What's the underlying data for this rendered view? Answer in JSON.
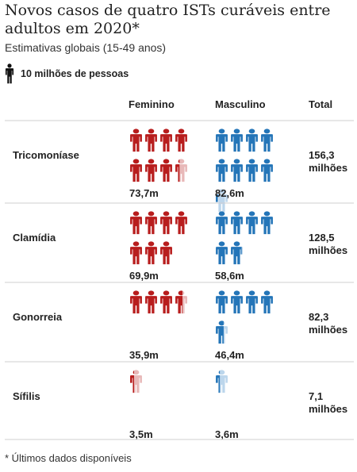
{
  "title": "Novos casos de quatro ISTs curáveis entre adultos em 2020*",
  "subtitle": "Estimativas globais (15-49 anos)",
  "legend": {
    "label": "10 milhões de pessoas",
    "icon": "person-icon"
  },
  "headers": {
    "female": "Feminino",
    "male": "Masculino",
    "total": "Total"
  },
  "footnote": "* Últimos dados disponíveis",
  "colors": {
    "female": "#b81d1d",
    "male": "#2475b8",
    "female_partial": "#e8b8b8",
    "male_partial": "#bcd6ec",
    "legend_icon": "#111111",
    "divider": "#cfcfcf"
  },
  "chart_data": {
    "type": "pictograph",
    "unit_label": "10 milhões de pessoas",
    "unit_value_millions": 10,
    "categories": [
      "Tricomoníase",
      "Clamídia",
      "Gonorreia",
      "Sífilis"
    ],
    "series": [
      {
        "name": "Feminino",
        "values": [
          73.7,
          69.9,
          35.9,
          3.5
        ],
        "labels": [
          "73,7m",
          "69,9m",
          "35,9m",
          "3,5m"
        ]
      },
      {
        "name": "Masculino",
        "values": [
          82.6,
          58.6,
          46.4,
          3.6
        ],
        "labels": [
          "82,6m",
          "58,6m",
          "46,4m",
          "3,6m"
        ]
      }
    ],
    "totals": [
      156.3,
      128.5,
      82.3,
      7.1
    ],
    "total_labels": [
      "156,3",
      "128,5",
      "82,3",
      "7,1"
    ],
    "total_unit": "milhões"
  }
}
